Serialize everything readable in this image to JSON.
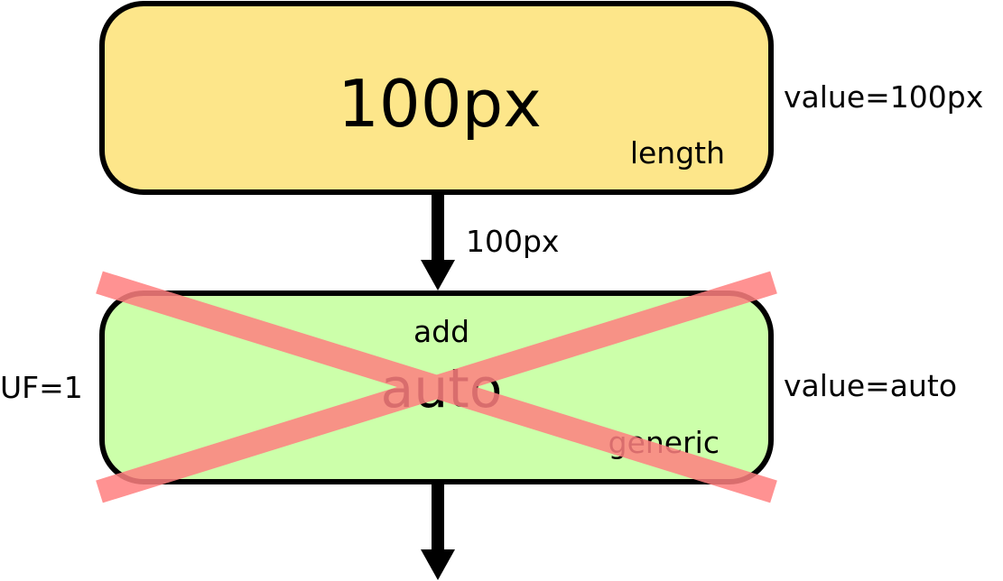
{
  "top_box": {
    "value": "100px",
    "type_label": "length",
    "side_label": "value=100px",
    "fill_color": "#fde68a"
  },
  "connector": {
    "label": "100px"
  },
  "bottom_box": {
    "value": "auto",
    "operation_label": "add",
    "type_label": "generic",
    "side_label": "value=auto",
    "left_label": "UF=1",
    "fill_color": "#ccffaa"
  },
  "cross_out": {
    "color": "#ff8080"
  }
}
